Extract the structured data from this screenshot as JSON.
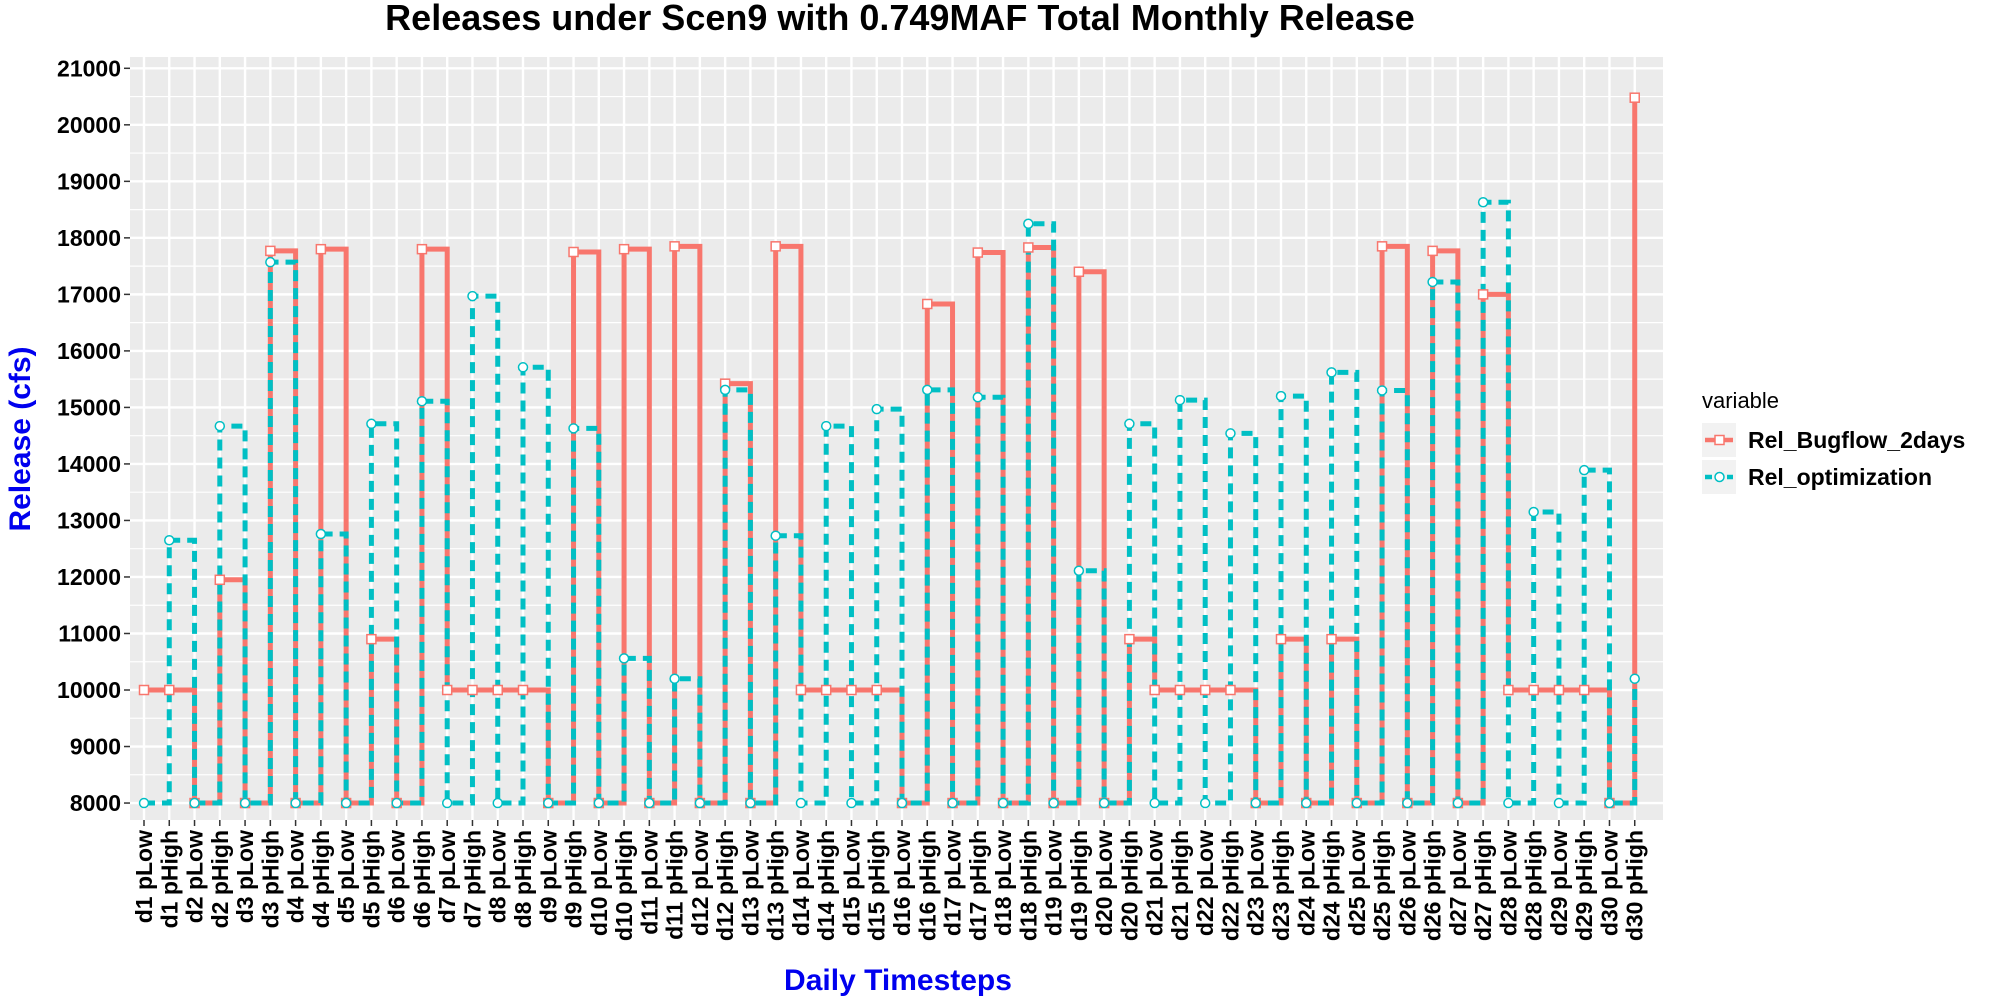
{
  "chart_data": {
    "type": "line",
    "step": true,
    "title": "Releases under Scen9 with 0.749MAF Total Monthly Release",
    "xlabel": "Daily Timesteps",
    "ylabel": "Release (cfs)",
    "ylim": [
      7700,
      21200
    ],
    "yticks": [
      8000,
      9000,
      10000,
      11000,
      12000,
      13000,
      14000,
      15000,
      16000,
      17000,
      18000,
      19000,
      20000,
      21000
    ],
    "grid": true,
    "background": "#ebebeb",
    "legend": {
      "title": "variable",
      "position": "right"
    },
    "categories": [
      "d1 pLow",
      "d1 pHigh",
      "d2 pLow",
      "d2 pHigh",
      "d3 pLow",
      "d3 pHigh",
      "d4 pLow",
      "d4 pHigh",
      "d5 pLow",
      "d5 pHigh",
      "d6 pLow",
      "d6 pHigh",
      "d7 pLow",
      "d7 pHigh",
      "d8 pLow",
      "d8 pHigh",
      "d9 pLow",
      "d9 pHigh",
      "d10 pLow",
      "d10 pHigh",
      "d11 pLow",
      "d11 pHigh",
      "d12 pLow",
      "d12 pHigh",
      "d13 pLow",
      "d13 pHigh",
      "d14 pLow",
      "d14 pHigh",
      "d15 pLow",
      "d15 pHigh",
      "d16 pLow",
      "d16 pHigh",
      "d17 pLow",
      "d17 pHigh",
      "d18 pLow",
      "d18 pHigh",
      "d19 pLow",
      "d19 pHigh",
      "d20 pLow",
      "d20 pHigh",
      "d21 pLow",
      "d21 pHigh",
      "d22 pLow",
      "d22 pHigh",
      "d23 pLow",
      "d23 pHigh",
      "d24 pLow",
      "d24 pHigh",
      "d25 pLow",
      "d25 pHigh",
      "d26 pLow",
      "d26 pHigh",
      "d27 pLow",
      "d27 pHigh",
      "d28 pLow",
      "d28 pHigh",
      "d29 pLow",
      "d29 pHigh",
      "d30 pLow",
      "d30 pHigh"
    ],
    "series": [
      {
        "name": "Rel_Bugflow_2days",
        "color": "#f8766d",
        "line": "solid",
        "marker": "square",
        "values": [
          10000,
          10000,
          8000,
          11950,
          8000,
          17770,
          8000,
          17800,
          8000,
          10900,
          8000,
          17800,
          10000,
          10000,
          10000,
          10000,
          8000,
          17750,
          8000,
          17800,
          8000,
          17850,
          8000,
          15420,
          8000,
          17850,
          10000,
          10000,
          10000,
          10000,
          8000,
          16830,
          8000,
          17740,
          8000,
          17830,
          8000,
          17400,
          8000,
          10900,
          10000,
          10000,
          10000,
          10000,
          8000,
          10900,
          8000,
          10900,
          8000,
          17850,
          8000,
          17770,
          8000,
          17000,
          10000,
          10000,
          10000,
          10000,
          8000,
          20480
        ]
      },
      {
        "name": "Rel_optimization",
        "color": "#00bfc4",
        "line": "dashed",
        "marker": "circle",
        "values": [
          8000,
          12650,
          8000,
          14670,
          8000,
          17570,
          8000,
          12760,
          8000,
          14710,
          8000,
          15110,
          8000,
          16970,
          8000,
          15710,
          8000,
          14630,
          8000,
          10560,
          8000,
          10200,
          8000,
          15310,
          8000,
          12730,
          8000,
          14670,
          8000,
          14970,
          8000,
          15310,
          8000,
          15180,
          8000,
          18250,
          8000,
          12110,
          8000,
          14710,
          8000,
          15130,
          8000,
          14540,
          8000,
          15200,
          8000,
          15620,
          8000,
          15300,
          8000,
          17220,
          8000,
          18630,
          8000,
          13150,
          8000,
          13890,
          8000,
          10200
        ]
      }
    ]
  }
}
